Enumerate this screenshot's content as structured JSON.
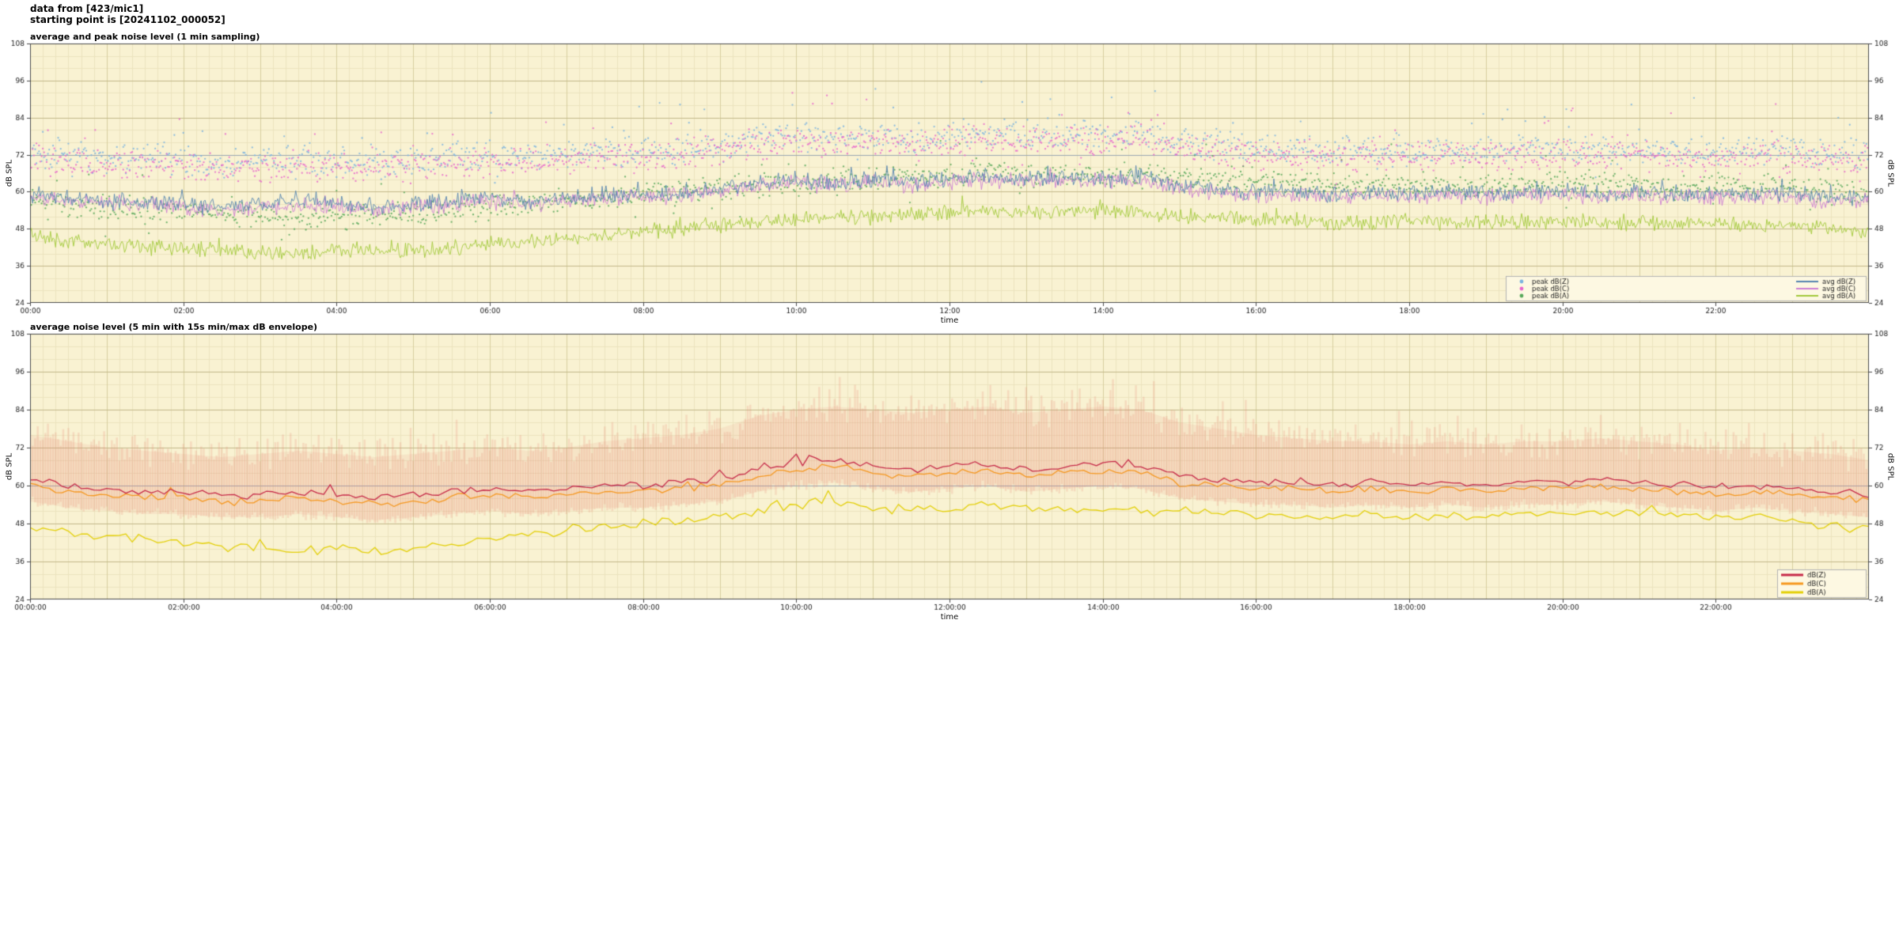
{
  "header": {
    "line1": "data from [423/mic1]",
    "line2": "starting point is [20241102_000052]"
  },
  "colors": {
    "page_bg": "#ffffff",
    "plot_bg": "#f9f2d2",
    "grid_minor": "#ece4bf",
    "grid_hour": "#d8cfa0",
    "grid_major": "#c3b98b",
    "axis": "#4a4a4a",
    "text": "#222222",
    "reference": "#9aa7b3",
    "legend_bg": "#fdf8e2",
    "legend_border": "#b3b3b3"
  },
  "chart_data": [
    {
      "type": "line+scatter",
      "title": "average and peak noise level (1 min sampling)",
      "xlabel": "time",
      "ylabel": "dB SPL",
      "ylabel_right": "dB SPL",
      "ylim": [
        24,
        108
      ],
      "yticks": [
        24,
        36,
        48,
        60,
        72,
        84,
        96,
        108
      ],
      "xlim_hours": [
        0,
        24
      ],
      "xtick_hours": [
        0,
        2,
        4,
        6,
        8,
        10,
        12,
        14,
        16,
        18,
        20,
        22
      ],
      "xtick_labels": [
        "00:00",
        "02:00",
        "04:00",
        "06:00",
        "08:00",
        "10:00",
        "12:00",
        "14:00",
        "16:00",
        "18:00",
        "20:00",
        "22:00"
      ],
      "sample_step_min": 1,
      "control_step_hours": 0.5,
      "reference_line": 72,
      "line_width": 0.9,
      "grid": true,
      "legend": {
        "position": "lower right",
        "columns": [
          [
            "peak dB(Z)",
            "peak dB(C)",
            "peak dB(A)"
          ],
          [
            "avg dB(Z)",
            "avg dB(C)",
            "avg dB(A)"
          ]
        ]
      },
      "series": [
        {
          "name": "peak dB(Z)",
          "kind": "scatter",
          "color": "#7ab3e0",
          "spread": 5.5,
          "spike_p": 0.05,
          "spike_amp": 14,
          "base": [
            73,
            72,
            71,
            71,
            70,
            69,
            70,
            71,
            70,
            69,
            70,
            71,
            72,
            71,
            72,
            73,
            73,
            74,
            75,
            77,
            78,
            77,
            78,
            77,
            78,
            79,
            78,
            79,
            78,
            79,
            76,
            75,
            74,
            74,
            73,
            74,
            73,
            74,
            73,
            74,
            74,
            73,
            74,
            73,
            73,
            74,
            73,
            72,
            72
          ]
        },
        {
          "name": "peak dB(C)",
          "kind": "scatter",
          "color": "#e766cd",
          "spread": 5.5,
          "spike_p": 0.05,
          "spike_amp": 14,
          "base": [
            71,
            70,
            69,
            69,
            68,
            67,
            68,
            69,
            68,
            67,
            68,
            69,
            70,
            69,
            70,
            71,
            71,
            72,
            73,
            75,
            76,
            75,
            76,
            75,
            76,
            77,
            76,
            77,
            76,
            77,
            74,
            73,
            72,
            72,
            71,
            72,
            71,
            72,
            71,
            72,
            72,
            71,
            72,
            71,
            71,
            72,
            71,
            70,
            70
          ]
        },
        {
          "name": "peak dB(A)",
          "kind": "scatter",
          "color": "#57a85a",
          "spread": 4.5,
          "spike_p": 0.04,
          "spike_amp": 10,
          "base": [
            58,
            56,
            55,
            54,
            54,
            53,
            52,
            52,
            53,
            52,
            53,
            54,
            55,
            56,
            57,
            58,
            59,
            60,
            61,
            62,
            63,
            64,
            64,
            65,
            65,
            66,
            65,
            65,
            66,
            65,
            64,
            64,
            63,
            63,
            62,
            62,
            63,
            62,
            62,
            62,
            63,
            62,
            62,
            61,
            62,
            61,
            61,
            60,
            59
          ]
        },
        {
          "name": "avg dB(Z)",
          "kind": "line",
          "color": "#5684b0",
          "noise": 3.2,
          "values": [
            59,
            58,
            57,
            57,
            56,
            55,
            56,
            57,
            56,
            55,
            56,
            57,
            58,
            57,
            58,
            59,
            59,
            60,
            61,
            63,
            64,
            63,
            64,
            63,
            64,
            65,
            64,
            65,
            64,
            65,
            62,
            61,
            60,
            60,
            59,
            60,
            59,
            60,
            59,
            60,
            60,
            59,
            60,
            59,
            59,
            60,
            59,
            58,
            58
          ]
        },
        {
          "name": "avg dB(C)",
          "kind": "line",
          "color": "#cd7fd4",
          "noise": 3.2,
          "values": [
            58,
            57,
            56,
            56,
            55,
            54,
            55,
            56,
            55,
            54,
            55,
            56,
            57,
            56,
            57,
            58,
            58,
            59,
            60,
            62,
            63,
            62,
            63,
            62,
            63,
            64,
            63,
            64,
            63,
            64,
            61,
            60,
            59,
            59,
            58,
            59,
            58,
            59,
            58,
            59,
            59,
            58,
            59,
            58,
            58,
            59,
            58,
            57,
            57
          ]
        },
        {
          "name": "avg dB(A)",
          "kind": "line",
          "color": "#a2c93a",
          "noise": 3.0,
          "values": [
            46,
            44,
            43,
            42,
            42,
            41,
            40,
            40,
            41,
            40,
            41,
            42,
            43,
            44,
            45,
            46,
            47,
            48,
            49,
            50,
            51,
            52,
            52,
            53,
            53,
            54,
            53,
            53,
            54,
            53,
            52,
            52,
            51,
            51,
            50,
            50,
            51,
            50,
            50,
            50,
            51,
            50,
            50,
            49,
            50,
            49,
            49,
            48,
            47
          ]
        }
      ]
    },
    {
      "type": "line",
      "title": "average noise level (5 min with 15s min/max dB envelope)",
      "xlabel": "time",
      "ylabel": "dB SPL",
      "ylabel_right": "dB SPL",
      "ylim": [
        24,
        108
      ],
      "yticks": [
        24,
        36,
        48,
        60,
        72,
        84,
        96,
        108
      ],
      "xlim_hours": [
        0,
        24
      ],
      "xtick_hours": [
        0,
        2,
        4,
        6,
        8,
        10,
        12,
        14,
        16,
        18,
        20,
        22
      ],
      "xtick_labels": [
        "00:00:00",
        "02:00:00",
        "04:00:00",
        "06:00:00",
        "08:00:00",
        "10:00:00",
        "12:00:00",
        "14:00:00",
        "16:00:00",
        "18:00:00",
        "20:00:00",
        "22:00:00"
      ],
      "sample_step_min": 5,
      "control_step_hours": 0.5,
      "reference_line": 60,
      "line_width": 1.3,
      "grid": true,
      "legend": {
        "position": "lower right",
        "columns": [
          [
            "dB(Z)",
            "dB(C)",
            "dB(A)"
          ]
        ]
      },
      "envelope": {
        "name": "15s min/max envelope",
        "color": "#e98572",
        "upper": [
          76,
          74,
          72,
          71,
          70,
          69,
          70,
          71,
          70,
          69,
          70,
          71,
          72,
          71,
          72,
          74,
          75,
          76,
          78,
          82,
          84,
          85,
          84,
          83,
          84,
          85,
          83,
          84,
          85,
          84,
          80,
          78,
          76,
          75,
          74,
          74,
          73,
          74,
          73,
          74,
          74,
          75,
          74,
          73,
          71,
          72,
          71,
          70,
          68
        ],
        "lower": [
          55,
          53,
          52,
          51,
          51,
          50,
          50,
          51,
          50,
          49,
          50,
          51,
          52,
          51,
          52,
          53,
          53,
          54,
          55,
          58,
          60,
          61,
          59,
          58,
          59,
          60,
          58,
          59,
          60,
          59,
          56,
          55,
          54,
          54,
          53,
          54,
          53,
          54,
          53,
          54,
          54,
          55,
          54,
          53,
          52,
          53,
          52,
          51,
          50
        ]
      },
      "series": [
        {
          "name": "dB(Z)",
          "kind": "line",
          "color": "#c62a49",
          "noise": 1.4,
          "values": [
            62,
            60,
            59,
            58,
            58,
            57,
            57,
            58,
            57,
            56,
            57,
            58,
            59,
            58,
            59,
            60,
            60,
            61,
            62,
            65,
            67,
            68,
            66,
            65,
            66,
            67,
            65,
            66,
            67,
            66,
            63,
            62,
            61,
            61,
            60,
            61,
            60,
            61,
            60,
            61,
            61,
            62,
            61,
            60,
            59,
            60,
            59,
            58,
            57
          ]
        },
        {
          "name": "dB(C)",
          "kind": "line",
          "color": "#f59820",
          "noise": 1.4,
          "values": [
            60,
            58,
            57,
            56,
            56,
            55,
            55,
            56,
            55,
            54,
            55,
            56,
            57,
            56,
            57,
            58,
            58,
            59,
            60,
            63,
            65,
            66,
            64,
            63,
            64,
            65,
            63,
            64,
            65,
            64,
            61,
            60,
            59,
            59,
            58,
            59,
            58,
            59,
            58,
            59,
            59,
            60,
            59,
            58,
            57,
            58,
            57,
            56,
            55
          ]
        },
        {
          "name": "dB(A)",
          "kind": "line",
          "color": "#e3cf06",
          "noise": 1.8,
          "values": [
            47,
            45,
            44,
            43,
            42,
            41,
            40,
            39,
            40,
            39,
            40,
            41,
            43,
            44,
            46,
            47,
            48,
            49,
            50,
            52,
            54,
            55,
            53,
            52,
            53,
            54,
            53,
            52,
            53,
            52,
            52,
            51,
            51,
            50,
            50,
            51,
            50,
            51,
            50,
            51,
            51,
            52,
            51,
            50,
            50,
            51,
            49,
            47,
            46
          ]
        }
      ]
    }
  ]
}
